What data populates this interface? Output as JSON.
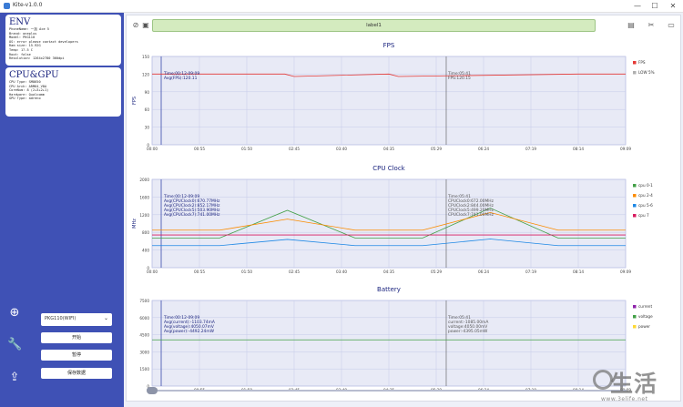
{
  "window": {
    "title": "Kite-v1.0.0",
    "btn_min": "—",
    "btn_max": "☐",
    "btn_close": "✕"
  },
  "env": {
    "title": "ENV",
    "lines": [
      "PhoneName: 一加 Ace 5",
      "Brand: oneplus",
      "Model: PKG110",
      "OS: error please contact developers",
      "Ram size: 15.92G",
      "Temp: 17.5 C",
      "Root: false",
      "Resolution: 1264x2780 360dpi"
    ]
  },
  "cpugpu": {
    "title": "CPU&GPU",
    "lines": [
      "CPU Type: SM8650",
      "CPU Arch: ARM64_V8A",
      "CoreNum: 8 (2+3+2+1)",
      "Hardware: Qualcomm",
      "GPU Type: adreno"
    ]
  },
  "sidebar": {
    "device_select": "PKG110(WIFI)",
    "device_arrow": "⌄",
    "btn_start": "开始",
    "btn_pause": "暂停",
    "btn_save": "保存数据",
    "icons": [
      "add-icon",
      "wrench-icon",
      "upload-icon"
    ],
    "icon_add": "⊕",
    "icon_wrench": "🔧",
    "icon_upload": "⇪"
  },
  "toolbar": {
    "label": "label1",
    "icon_compass": "⊘",
    "icon_image": "▣",
    "icon_book": "▤",
    "icon_cut": "✂",
    "icon_folder": "▭"
  },
  "xticks": [
    "00:00",
    "00:55",
    "01:50",
    "02:45",
    "03:40",
    "04:35",
    "05:29",
    "06:24",
    "07:19",
    "08:14",
    "09:09"
  ],
  "chart_data": [
    {
      "type": "line",
      "title": "FPS",
      "ylabel": "FPS",
      "ylim": [
        0,
        150
      ],
      "yticks": [
        "150",
        "120",
        "90",
        "60",
        "30",
        "0"
      ],
      "legend": [
        {
          "name": "FPS",
          "color": "#e53935"
        },
        {
          "name": "LOW 5%",
          "color": "#b0b0b0"
        }
      ],
      "series": [
        {
          "name": "FPS",
          "color": "#e53935",
          "x": [
            0.0,
            0.28,
            0.3,
            0.5,
            0.52,
            0.9,
            1.0
          ],
          "values": [
            120.1,
            120.1,
            116,
            120.1,
            116,
            120.1,
            120.1
          ]
        }
      ],
      "cursor_left": {
        "time": "Time:00:12-09:09",
        "lines": [
          "Avg(FPS):120.11"
        ]
      },
      "cursor_right": {
        "time": "Time:05:41",
        "lines": [
          "FPS:120.15"
        ]
      },
      "cursor_x": "05:41",
      "grid": true
    },
    {
      "type": "line",
      "title": "CPU Clock",
      "ylabel": "MHz",
      "ylim": [
        0,
        2000
      ],
      "yticks": [
        "2000",
        "1600",
        "1200",
        "800",
        "400",
        "0"
      ],
      "legend": [
        {
          "name": "cpu 0-1",
          "color": "#43a047"
        },
        {
          "name": "cpu 2-4",
          "color": "#fb8c00"
        },
        {
          "name": "cpu 5-6",
          "color": "#1e88e5"
        },
        {
          "name": "cpu 7",
          "color": "#d81b60"
        }
      ],
      "series": [
        {
          "name": "cpu 0-1",
          "color": "#43a047",
          "values": [
            672,
            672,
            1300,
            672,
            672,
            1350,
            672,
            672
          ]
        },
        {
          "name": "cpu 2-4",
          "color": "#fb8c00",
          "values": [
            850,
            850,
            1100,
            850,
            850,
            1250,
            850,
            850
          ]
        },
        {
          "name": "cpu 5-6",
          "color": "#1e88e5",
          "values": [
            500,
            500,
            640,
            500,
            500,
            650,
            500,
            500
          ]
        },
        {
          "name": "cpu 7",
          "color": "#d81b60",
          "values": [
            741,
            741,
            741,
            741,
            741,
            741,
            741,
            741
          ]
        }
      ],
      "cursor_left": {
        "time": "Time:00:12-09:09",
        "lines": [
          "Avg(CPUClock0):670.77MHz",
          "Avg(CPUClock2):852.17MHz",
          "Avg(CPUClock5):503.90MHz",
          "Avg(CPUClock7):741.00MHz"
        ]
      },
      "cursor_right": {
        "time": "Time:05:41",
        "lines": [
          "CPUClock0:672.00MHz",
          "CPUClock2:844.00MHz",
          "CPUClock5:499.20MHz",
          "CPUClock7:741.00MHz"
        ]
      },
      "cursor_x": "05:41",
      "grid": true
    },
    {
      "type": "line",
      "title": "Battery",
      "ylim": [
        0,
        7500
      ],
      "yticks": [
        "7500",
        "6000",
        "4500",
        "3000",
        "1500",
        "0"
      ],
      "legend": [
        {
          "name": "current",
          "color": "#8e24aa"
        },
        {
          "name": "voltage",
          "color": "#43a047"
        },
        {
          "name": "power",
          "color": "#fdd835"
        }
      ],
      "series": [
        {
          "name": "voltage",
          "color": "#43a047",
          "values": [
            4050,
            4050,
            4050,
            4050,
            4050,
            4050,
            4050,
            4050
          ]
        }
      ],
      "cursor_left": {
        "time": "Time:00:12-09:09",
        "lines": [
          "Avg(current):-1103.74mA",
          "Avg(voltage):4050.07mV",
          "Avg(power):-4492.24mW"
        ]
      },
      "cursor_right": {
        "time": "Time:05:41",
        "lines": [
          "current:-1085.00mA",
          "voltage:4050.00mV",
          "power:-4395.05mW"
        ]
      },
      "cursor_x": "05:41",
      "grid": true
    }
  ],
  "watermark": {
    "text": "生活",
    "url": "www.3elife.net"
  }
}
